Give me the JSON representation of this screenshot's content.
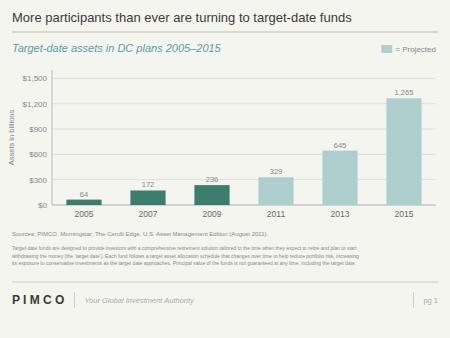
{
  "chart_data": {
    "type": "bar",
    "title": "More participants than ever are turning to target-date funds",
    "subtitle": "Target-date assets in DC plans 2005–2015",
    "categories": [
      "2005",
      "2007",
      "2009",
      "2011",
      "2013",
      "2015"
    ],
    "values": [
      64,
      172,
      236,
      329,
      645,
      1265
    ],
    "value_labels": [
      "64",
      "172",
      "236",
      "329",
      "645",
      "1,265"
    ],
    "data_labels": true,
    "colors": [
      "#3d7d6e",
      "#3d7d6e",
      "#3d7d6e",
      "#aecfce",
      "#aecfce",
      "#aecfce"
    ],
    "ylim": [
      0,
      1600
    ],
    "yticks": [
      {
        "value": 0,
        "label": "$0"
      },
      {
        "value": 300,
        "label": "$300"
      },
      {
        "value": 600,
        "label": "$600"
      },
      {
        "value": 900,
        "label": "$900"
      },
      {
        "value": 1200,
        "label": "$1,200"
      },
      {
        "value": 1500,
        "label": "$1,500"
      }
    ],
    "ylabel": "Assets in billions",
    "grid": true,
    "legend": "upper right",
    "annotations": [
      {
        "text": "= Projected",
        "color": "#aecfce"
      },
      {
        "text": "Sources: PIMCO,  Morningstar, The Cerulli Edge, U.S. Asset Management Edition (August 2011)."
      },
      {
        "text": "Target-date funds are designed to provide investors with a comprehensive retirement solution tailored to the time when they expect to retire and plan to  start\nwithdrawing the money (the ‘target date’). Each fund follows a target asset allocation schedule that changes over time to  help reduce portfolio risk, increasing\nits exposure to conservative investments as the target date approaches. Principal value of the funds is not guaranteed at any time, including the target date."
      },
      {
        "text": "P I M C O"
      },
      {
        "text": "Your Global Investment Authority"
      },
      {
        "text": "pg 1"
      }
    ]
  }
}
